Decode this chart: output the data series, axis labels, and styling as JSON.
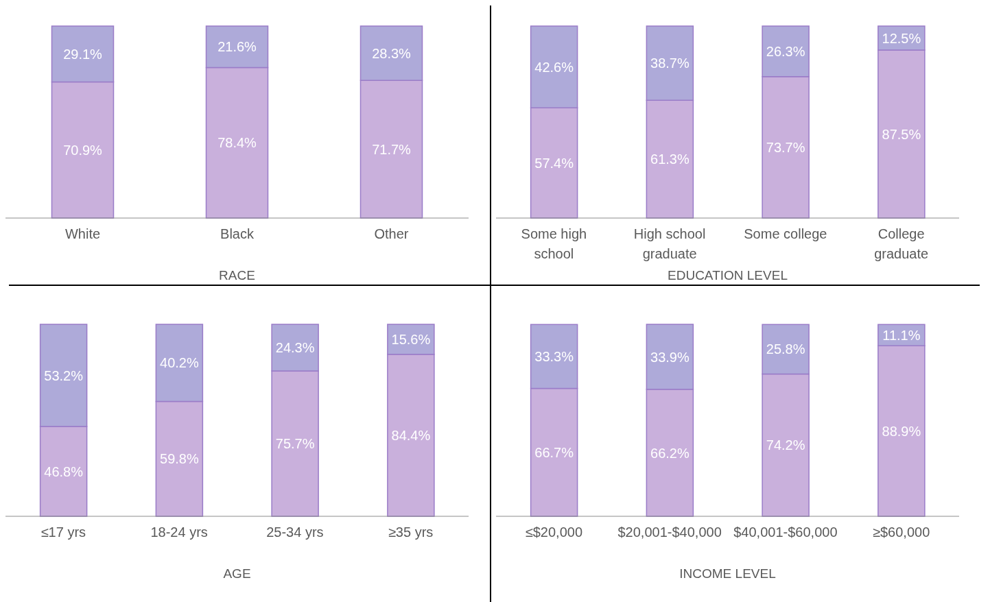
{
  "chart_data": [
    {
      "type": "bar",
      "stacked": true,
      "xlabel": "RACE",
      "categories": [
        "White",
        "Black",
        "Other"
      ],
      "series": [
        {
          "color": "#c9b0dc",
          "values": [
            70.9,
            78.4,
            71.7
          ],
          "value_labels": [
            "70.9%",
            "78.4%",
            "71.7%"
          ]
        },
        {
          "color": "#aeaad9",
          "values": [
            29.1,
            21.6,
            28.3
          ],
          "value_labels": [
            "29.1%",
            "21.6%",
            "28.3%"
          ]
        }
      ]
    },
    {
      "type": "bar",
      "stacked": true,
      "xlabel": "EDUCATION LEVEL",
      "categories": [
        "Some high school",
        "High school graduate",
        "Some college",
        "College graduate"
      ],
      "series": [
        {
          "color": "#c9b0dc",
          "values": [
            57.4,
            61.3,
            73.7,
            87.5
          ],
          "value_labels": [
            "57.4%",
            "61.3%",
            "73.7%",
            "87.5%"
          ]
        },
        {
          "color": "#aeaad9",
          "values": [
            42.6,
            38.7,
            26.3,
            12.5
          ],
          "value_labels": [
            "42.6%",
            "38.7%",
            "26.3%",
            "12.5%"
          ]
        }
      ]
    },
    {
      "type": "bar",
      "stacked": true,
      "xlabel": "AGE",
      "categories": [
        "≤17 yrs",
        "18-24 yrs",
        "25-34 yrs",
        "≥35 yrs"
      ],
      "series": [
        {
          "color": "#c9b0dc",
          "values": [
            46.8,
            59.8,
            75.7,
            84.4
          ],
          "value_labels": [
            "46.8%",
            "59.8%",
            "75.7%",
            "84.4%"
          ]
        },
        {
          "color": "#aeaad9",
          "values": [
            53.2,
            40.2,
            24.3,
            15.6
          ],
          "value_labels": [
            "53.2%",
            "40.2%",
            "24.3%",
            "15.6%"
          ]
        }
      ]
    },
    {
      "type": "bar",
      "stacked": true,
      "xlabel": "INCOME LEVEL",
      "categories": [
        "≤$20,000",
        "$20,001-$40,000",
        "$40,001-$60,000",
        "≥$60,000"
      ],
      "series": [
        {
          "color": "#c9b0dc",
          "values": [
            66.7,
            66.2,
            74.2,
            88.9
          ],
          "value_labels": [
            "66.7%",
            "66.2%",
            "74.2%",
            "88.9%"
          ]
        },
        {
          "color": "#aeaad9",
          "values": [
            33.3,
            33.9,
            25.8,
            11.1
          ],
          "value_labels": [
            "33.3%",
            "33.9%",
            "25.8%",
            "11.1%"
          ]
        }
      ]
    }
  ]
}
